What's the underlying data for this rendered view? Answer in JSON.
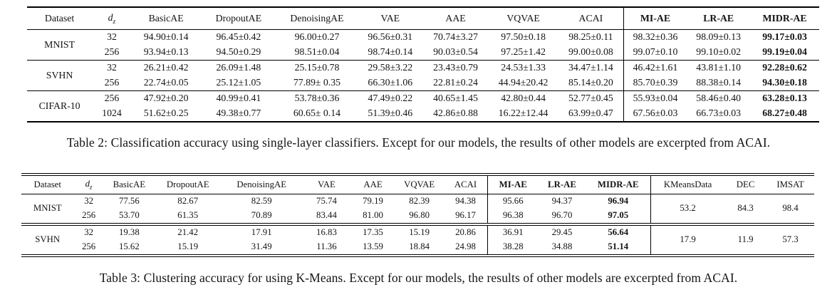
{
  "page": {
    "background": "#ffffff",
    "text_color": "#141414",
    "rule_color": "#000000"
  },
  "table2": {
    "caption": "Table 2: Classification accuracy using single-layer classifiers. Except for our models, the results of other models are excerpted from ACAI.",
    "header": {
      "dataset": "Dataset",
      "dz": {
        "main": "d",
        "sub": "z"
      },
      "models": [
        "BasicAE",
        "DropoutAE",
        "DenoisingAE",
        "VAE",
        "AAE",
        "VQVAE",
        "ACAI",
        "MI-AE",
        "LR-AE",
        "MIDR-AE"
      ],
      "bold_models": [
        7,
        8,
        9
      ],
      "vsep_before": [
        7
      ]
    },
    "bold_value_cols": [
      9
    ],
    "groups": [
      {
        "dataset": "MNIST",
        "rows": [
          {
            "dz": "32",
            "values": [
              "94.90±0.14",
              "96.45±0.42",
              "96.00±0.27",
              "96.56±0.31",
              "70.74±3.27",
              "97.50±0.18",
              "98.25±0.11",
              "98.32±0.36",
              "98.09±0.13",
              "99.17±0.03"
            ]
          },
          {
            "dz": "256",
            "values": [
              "93.94±0.13",
              "94.50±0.29",
              "98.51±0.04",
              "98.74±0.14",
              "90.03±0.54",
              "97.25±1.42",
              "99.00±0.08",
              "99.07±0.10",
              "99.10±0.02",
              "99.19±0.04"
            ]
          }
        ]
      },
      {
        "dataset": "SVHN",
        "rows": [
          {
            "dz": "32",
            "values": [
              "26.21±0.42",
              "26.09±1.48",
              "25.15±0.78",
              "29.58±3.22",
              "23.43±0.79",
              "24.53±1.33",
              "34.47±1.14",
              "46.42±1.61",
              "43.81±1.10",
              "92.28±0.62"
            ]
          },
          {
            "dz": "256",
            "values": [
              "22.74±0.05",
              "25.12±1.05",
              "77.89± 0.35",
              "66.30±1.06",
              "22.81±0.24",
              "44.94±20.42",
              "85.14±0.20",
              "85.70±0.39",
              "88.38±0.14",
              "94.30±0.18"
            ]
          }
        ]
      },
      {
        "dataset": "CIFAR-10",
        "rows": [
          {
            "dz": "256",
            "values": [
              "47.92±0.20",
              "40.99±0.41",
              "53.78±0.36",
              "47.49±0.22",
              "40.65±1.45",
              "42.80±0.44",
              "52.77±0.45",
              "55.93±0.04",
              "58.46±0.40",
              "63.28±0.13"
            ]
          },
          {
            "dz": "1024",
            "values": [
              "51.62±0.25",
              "49.38±0.77",
              "60.65± 0.14",
              "51.39±0.46",
              "42.86±0.88",
              "16.22±12.44",
              "63.99±0.47",
              "67.56±0.03",
              "66.73±0.03",
              "68.27±0.48"
            ]
          }
        ]
      }
    ]
  },
  "table3": {
    "caption": "Table 3: Clustering accuracy for using K-Means. Except for our models, the results of other models are excerpted from ACAI.",
    "header": {
      "dataset": "Dataset",
      "dz": {
        "main": "d",
        "sub": "z"
      },
      "models": [
        "BasicAE",
        "DropoutAE",
        "DenoisingAE",
        "VAE",
        "AAE",
        "VQVAE",
        "ACAI",
        "MI-AE",
        "LR-AE",
        "MIDR-AE",
        "KMeansData",
        "DEC",
        "IMSAT"
      ],
      "bold_models": [
        7,
        8,
        9
      ],
      "vsep_before": [
        7,
        10
      ]
    },
    "bold_value_cols": [
      9
    ],
    "groups": [
      {
        "dataset": "MNIST",
        "rows": [
          {
            "dz": "32",
            "values": [
              "77.56",
              "82.67",
              "82.59",
              "75.74",
              "79.19",
              "82.39",
              "94.38",
              "95.66",
              "94.37",
              "96.94"
            ]
          },
          {
            "dz": "256",
            "values": [
              "53.70",
              "61.35",
              "70.89",
              "83.44",
              "81.00",
              "96.80",
              "96.17",
              "96.38",
              "96.70",
              "97.05"
            ]
          }
        ],
        "merged": [
          "53.2",
          "84.3",
          "98.4"
        ]
      },
      {
        "dataset": "SVHN",
        "rows": [
          {
            "dz": "32",
            "values": [
              "19.38",
              "21.42",
              "17.91",
              "16.83",
              "17.35",
              "15.19",
              "20.86",
              "36.91",
              "29.45",
              "56.64"
            ]
          },
          {
            "dz": "256",
            "values": [
              "15.62",
              "15.19",
              "31.49",
              "11.36",
              "13.59",
              "18.84",
              "24.98",
              "38.28",
              "34.88",
              "51.14"
            ]
          }
        ],
        "merged": [
          "17.9",
          "11.9",
          "57.3"
        ]
      }
    ]
  }
}
